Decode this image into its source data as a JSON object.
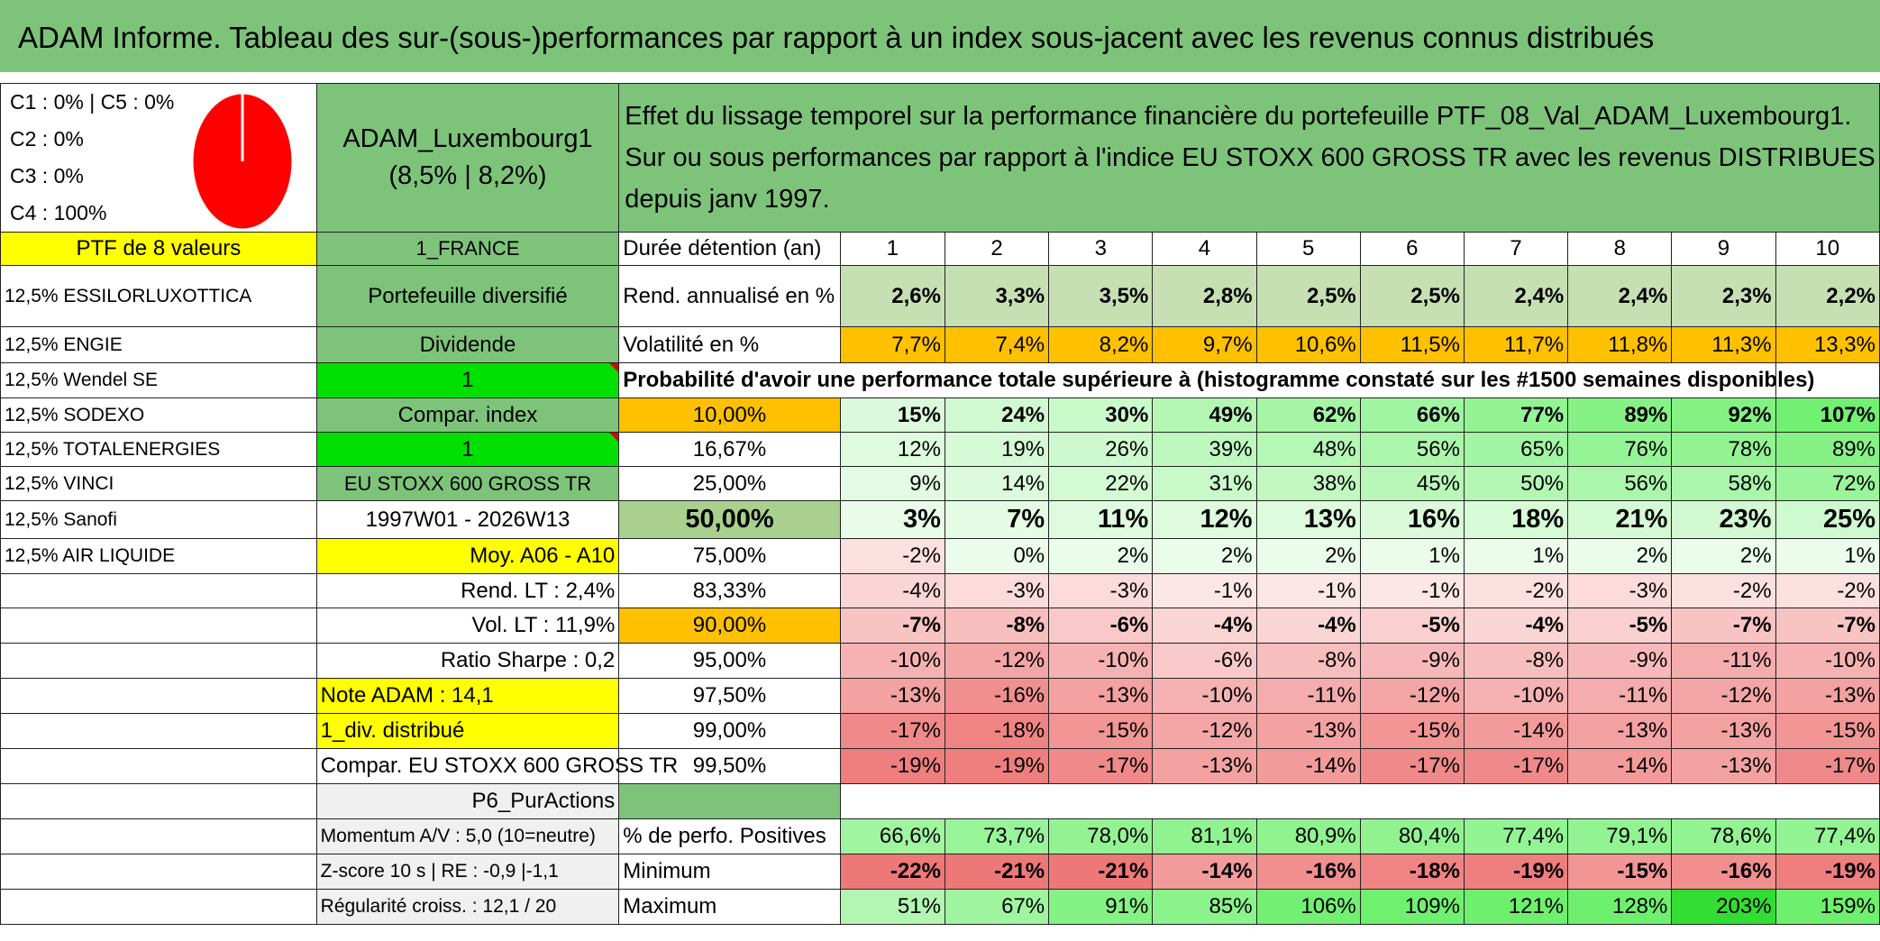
{
  "title": "ADAM Informe. Tableau des sur-(sous-)performances par rapport à un index sous-jacent avec les revenus connus distribués",
  "pie": {
    "classes": [
      "C1 : 0% | C5 : 0%",
      "C2 : 0%",
      "C3 : 0%",
      "C4 : 100%"
    ],
    "color": "#ff0000",
    "value_percent": 100
  },
  "fund": {
    "name": "ADAM_Luxembourg1",
    "stats": "(8,5% | 8,2%)"
  },
  "description": "Effet du lissage temporel sur la performance financière du portefeuille PTF_08_Val_ADAM_Luxembourg1. Sur ou sous performances par rapport à l'indice EU STOXX 600 GROSS TR avec les revenus DISTRIBUES depuis janv 1997.",
  "ptf_label": "PTF de 8 valeurs",
  "holdings": [
    "12,5% ESSILORLUXOTTICA",
    "12,5% ENGIE",
    "12,5% Wendel SE",
    "12,5% SODEXO",
    "12,5% TOTALENERGIES",
    "12,5% VINCI",
    "12,5% Sanofi",
    "12,5% AIR LIQUIDE"
  ],
  "info": {
    "country": "1_FRANCE",
    "type": "Portefeuille diversifié",
    "dividend_label": "Dividende",
    "dividend_value": "1",
    "compar_label": "Compar. index",
    "compar_value": "1",
    "index_name": "EU STOXX 600 GROSS TR",
    "period": "1997W01 - 2026W13",
    "moy": "Moy. A06 - A10",
    "rend_lt": "Rend. LT : 2,4%",
    "vol_lt": "Vol. LT : 11,9%",
    "sharpe": "Ratio Sharpe : 0,2",
    "note": "Note ADAM : 14,1",
    "div": "1_div. distribué",
    "compar_full": "Compar. EU STOXX 600 GROSS TR",
    "p6": "P6_PurActions",
    "momentum": "Momentum A/V : 5,0 (10=neutre)",
    "zscore": "Z-score 10 s | RE : -0,9 |-1,1",
    "regularite": "Régularité croiss. : 12,1 / 20"
  },
  "table": {
    "duration_label": "Durée détention (an)",
    "years": [
      "1",
      "2",
      "3",
      "4",
      "5",
      "6",
      "7",
      "8",
      "9",
      "10"
    ],
    "rend_label": "Rend. annualisé en %",
    "rend": [
      "2,6%",
      "3,3%",
      "3,5%",
      "2,8%",
      "2,5%",
      "2,5%",
      "2,4%",
      "2,4%",
      "2,3%",
      "2,2%"
    ],
    "vol_label": "Volatilité en %",
    "vol": [
      "7,7%",
      "7,4%",
      "8,2%",
      "9,7%",
      "10,6%",
      "11,5%",
      "11,7%",
      "11,8%",
      "11,3%",
      "13,3%"
    ],
    "prob_title": "Probabilité d'avoir une performance totale supérieure à (histogramme constaté sur les #1500 semaines disponibles)",
    "quantiles": [
      {
        "label": "10,00%",
        "values": [
          "15%",
          "24%",
          "30%",
          "49%",
          "62%",
          "66%",
          "77%",
          "89%",
          "92%",
          "107%"
        ]
      },
      {
        "label": "16,67%",
        "values": [
          "12%",
          "19%",
          "26%",
          "39%",
          "48%",
          "56%",
          "65%",
          "76%",
          "78%",
          "89%"
        ]
      },
      {
        "label": "25,00%",
        "values": [
          "9%",
          "14%",
          "22%",
          "31%",
          "38%",
          "45%",
          "50%",
          "56%",
          "58%",
          "72%"
        ]
      },
      {
        "label": "50,00%",
        "values": [
          "3%",
          "7%",
          "11%",
          "12%",
          "13%",
          "16%",
          "18%",
          "21%",
          "23%",
          "25%"
        ]
      },
      {
        "label": "75,00%",
        "values": [
          "-2%",
          "0%",
          "2%",
          "2%",
          "2%",
          "1%",
          "1%",
          "2%",
          "2%",
          "1%"
        ]
      },
      {
        "label": "83,33%",
        "values": [
          "-4%",
          "-3%",
          "-3%",
          "-1%",
          "-1%",
          "-1%",
          "-2%",
          "-3%",
          "-2%",
          "-2%"
        ]
      },
      {
        "label": "90,00%",
        "values": [
          "-7%",
          "-8%",
          "-6%",
          "-4%",
          "-4%",
          "-5%",
          "-4%",
          "-5%",
          "-7%",
          "-7%"
        ]
      },
      {
        "label": "95,00%",
        "values": [
          "-10%",
          "-12%",
          "-10%",
          "-6%",
          "-8%",
          "-9%",
          "-8%",
          "-9%",
          "-11%",
          "-10%"
        ]
      },
      {
        "label": "97,50%",
        "values": [
          "-13%",
          "-16%",
          "-13%",
          "-10%",
          "-11%",
          "-12%",
          "-10%",
          "-11%",
          "-12%",
          "-13%"
        ]
      },
      {
        "label": "99,00%",
        "values": [
          "-17%",
          "-18%",
          "-15%",
          "-12%",
          "-13%",
          "-15%",
          "-14%",
          "-13%",
          "-13%",
          "-15%"
        ]
      },
      {
        "label": "99,50%",
        "values": [
          "-19%",
          "-19%",
          "-17%",
          "-13%",
          "-14%",
          "-17%",
          "-17%",
          "-14%",
          "-13%",
          "-17%"
        ]
      }
    ],
    "pos_label": "% de perfo. Positives",
    "pos": [
      "66,6%",
      "73,7%",
      "78,0%",
      "81,1%",
      "80,9%",
      "80,4%",
      "77,4%",
      "79,1%",
      "78,6%",
      "77,4%"
    ],
    "min_label": "Minimum",
    "min": [
      "-22%",
      "-21%",
      "-21%",
      "-14%",
      "-16%",
      "-18%",
      "-19%",
      "-15%",
      "-16%",
      "-19%"
    ],
    "max_label": "Maximum",
    "max": [
      "51%",
      "67%",
      "91%",
      "85%",
      "106%",
      "109%",
      "121%",
      "128%",
      "203%",
      "159%"
    ]
  }
}
